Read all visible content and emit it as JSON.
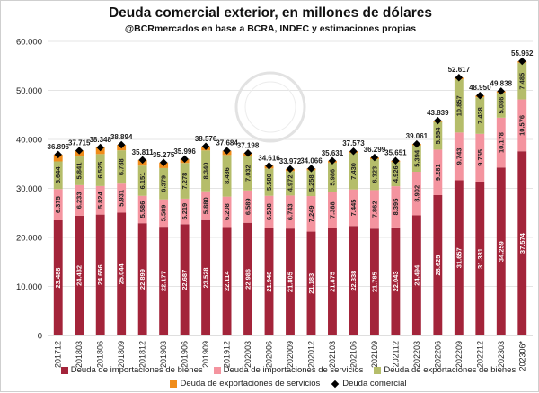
{
  "chart_data": {
    "type": "bar",
    "stacked": true,
    "title": "Deuda comercial exterior, en millones de dólares",
    "subtitle": "@BCRmercados en base a BCRA, INDEC y estimaciones propias",
    "categories": [
      "201712",
      "201803",
      "201806",
      "201809",
      "201812",
      "201903",
      "201906",
      "201909",
      "201912",
      "202003",
      "202006",
      "202009",
      "202012",
      "202103",
      "202106",
      "202109",
      "202112",
      "202203",
      "202206",
      "202209",
      "202212",
      "202303",
      "202306*"
    ],
    "ylim": [
      0,
      60000
    ],
    "yticks": [
      "0",
      "10.000",
      "20.000",
      "30.000",
      "40.000",
      "50.000",
      "60.000"
    ],
    "grid": true,
    "legend_position": "bottom",
    "series": [
      {
        "name": "Deuda de importaciones de bienes",
        "color": "#a3243a",
        "labels": true,
        "values": [
          23488,
          24432,
          24656,
          25044,
          22899,
          22177,
          22687,
          23528,
          22114,
          22986,
          21948,
          21805,
          21183,
          21875,
          22338,
          21785,
          22043,
          24494,
          28625,
          31657,
          31381,
          34259,
          37574
        ]
      },
      {
        "name": "Deuda de importaciones de servicios",
        "color": "#f4949f",
        "labels": true,
        "values": [
          6375,
          6233,
          5824,
          5931,
          5586,
          5589,
          5219,
          5880,
          6208,
          6589,
          6538,
          6743,
          7249,
          7388,
          7445,
          7862,
          8395,
          8902,
          9281,
          9743,
          9755,
          10178,
          10576
        ]
      },
      {
        "name": "Deuda de exportaciones de bienes",
        "color": "#b5bd6a",
        "labels": true,
        "values": [
          5644,
          5841,
          6525,
          6788,
          6151,
          6379,
          7278,
          8340,
          8486,
          7032,
          5580,
          4972,
          5258,
          5986,
          7430,
          6323,
          4926,
          5394,
          5654,
          10857,
          7438,
          5086,
          7485
        ]
      },
      {
        "name": "Deuda de exportaciones de servicios",
        "color": "#f08c1a",
        "labels": false,
        "values": [
          1389,
          1209,
          1343,
          1131,
          1175,
          1130,
          812,
          828,
          876,
          591,
          550,
          452,
          376,
          382,
          360,
          329,
          287,
          271,
          279,
          360,
          376,
          315,
          327
        ]
      }
    ],
    "total": {
      "name": "Deuda comercial",
      "values": [
        36896,
        37715,
        38348,
        38894,
        35811,
        35275,
        35996,
        38576,
        37684,
        37198,
        34616,
        33972,
        34066,
        35631,
        37573,
        36299,
        35651,
        39061,
        43839,
        52617,
        48950,
        49838,
        55962
      ]
    }
  }
}
